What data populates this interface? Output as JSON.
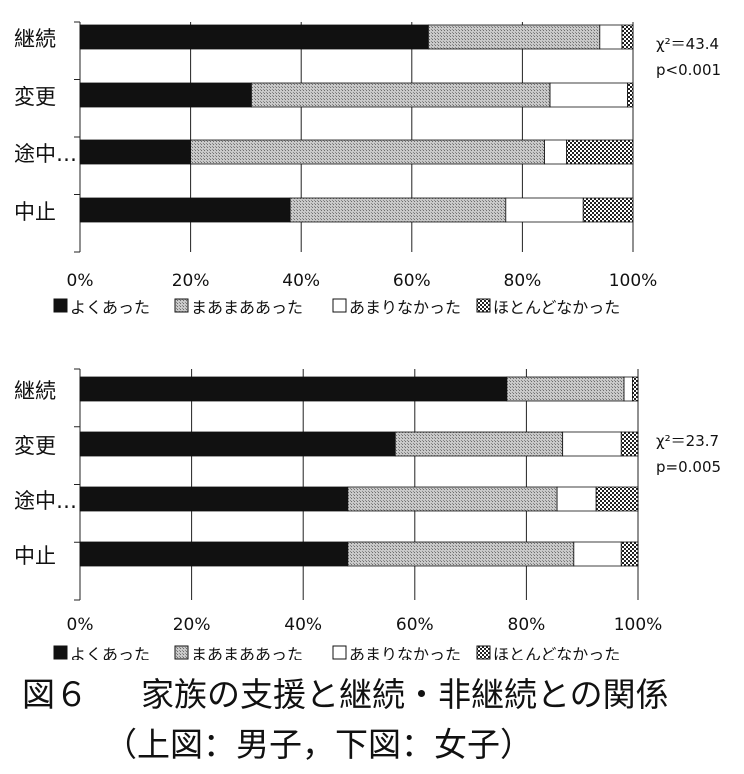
{
  "chart_data": [
    {
      "type": "bar",
      "orientation": "horizontal",
      "stacked": true,
      "categories": [
        "継続",
        "変更",
        "途中…",
        "中止"
      ],
      "series": [
        {
          "name": "よくあった",
          "values": [
            63,
            31,
            20,
            38
          ]
        },
        {
          "name": "まあまああった",
          "values": [
            31,
            54,
            64,
            39
          ]
        },
        {
          "name": "あまりなかった",
          "values": [
            4,
            14,
            4,
            14
          ]
        },
        {
          "name": "ほとんどなかった",
          "values": [
            2,
            1,
            12,
            9
          ]
        }
      ],
      "xlim": [
        0,
        100
      ],
      "xticks": [
        "0%",
        "20%",
        "40%",
        "60%",
        "80%",
        "100%"
      ],
      "grid": true,
      "legend": "bottom",
      "stats": {
        "chi": "χ²＝43.4",
        "p": "p<0.001"
      }
    },
    {
      "type": "bar",
      "orientation": "horizontal",
      "stacked": true,
      "categories": [
        "継続",
        "変更",
        "途中…",
        "中止"
      ],
      "series": [
        {
          "name": "よくあった",
          "values": [
            76.5,
            56.5,
            48,
            48
          ]
        },
        {
          "name": "まあまああった",
          "values": [
            21,
            30,
            37.5,
            40.5
          ]
        },
        {
          "name": "あまりなかった",
          "values": [
            1.5,
            10.5,
            7,
            8.5
          ]
        },
        {
          "name": "ほとんどなかった",
          "values": [
            1,
            3,
            7.5,
            3
          ]
        }
      ],
      "xlim": [
        0,
        100
      ],
      "xticks": [
        "0%",
        "20%",
        "40%",
        "60%",
        "80%",
        "100%"
      ],
      "grid": true,
      "legend": "bottom",
      "stats": {
        "chi": "χ²＝23.7",
        "p": "p=0.005"
      }
    }
  ],
  "caption": {
    "figure_no": "図６",
    "title": "家族の支援と継続・非継続との関係",
    "subtitle": "（上図：男子，下図：女子）"
  },
  "colors": {
    "よくあった": "#111111",
    "まあまああった": "#b5b5b5",
    "あまりなかった": "#ffffff",
    "ほとんどなかった": "#444444"
  }
}
